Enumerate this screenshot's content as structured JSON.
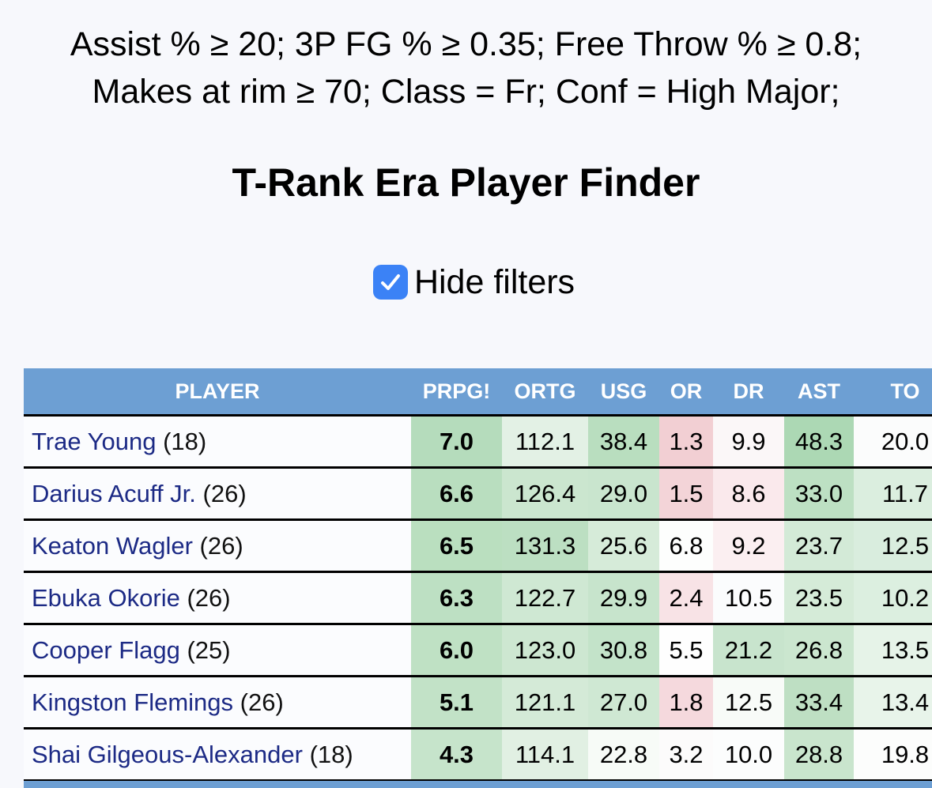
{
  "filters": {
    "line1": "Assist % ≥ 20; 3P FG % ≥ 0.35; Free Throw % ≥ 0.8;",
    "line2": "Makes at rim ≥ 70; Class = Fr; Conf = High Major;"
  },
  "page_title": "T-Rank Era Player Finder",
  "hide_filters": {
    "label": "Hide filters",
    "checked": true
  },
  "table": {
    "columns": [
      "PLAYER",
      "PRPG!",
      "ORTG",
      "USG",
      "OR",
      "DR",
      "AST",
      "TO"
    ],
    "rows": [
      {
        "name": "Trae Young",
        "pick": "(18)",
        "cells": [
          "7.0",
          "112.1",
          "38.4",
          "1.3",
          "9.9",
          "48.3",
          "20.0"
        ]
      },
      {
        "name": "Darius Acuff Jr.",
        "pick": "(26)",
        "cells": [
          "6.6",
          "126.4",
          "29.0",
          "1.5",
          "8.6",
          "33.0",
          "11.7"
        ]
      },
      {
        "name": "Keaton Wagler",
        "pick": "(26)",
        "cells": [
          "6.5",
          "131.3",
          "25.6",
          "6.8",
          "9.2",
          "23.7",
          "12.5"
        ]
      },
      {
        "name": "Ebuka Okorie",
        "pick": "(26)",
        "cells": [
          "6.3",
          "122.7",
          "29.9",
          "2.4",
          "10.5",
          "23.5",
          "10.2"
        ]
      },
      {
        "name": "Cooper Flagg",
        "pick": "(25)",
        "cells": [
          "6.0",
          "123.0",
          "30.8",
          "5.5",
          "21.2",
          "26.8",
          "13.5"
        ]
      },
      {
        "name": "Kingston Flemings",
        "pick": "(26)",
        "cells": [
          "5.1",
          "121.1",
          "27.0",
          "1.8",
          "12.5",
          "33.4",
          "13.4"
        ]
      },
      {
        "name": "Shai Gilgeous-Alexander",
        "pick": "(18)",
        "cells": [
          "4.3",
          "114.1",
          "22.8",
          "3.2",
          "10.0",
          "28.8",
          "19.8"
        ]
      }
    ],
    "cell_colors": [
      [
        "#b5dcbc",
        "#e3f1e5",
        "#b9debf",
        "#f2cfd3",
        "#fbf7f8",
        "#acd8b4",
        "#fbfcfc"
      ],
      [
        "#b9debf",
        "#cbe6cf",
        "#c9e5ce",
        "#f3d4d8",
        "#fae9ec",
        "#bde0c3",
        "#dbeedf"
      ],
      [
        "#badfbf",
        "#bcdfc2",
        "#d6ebd9",
        "#fdfefd",
        "#fbeff1",
        "#d3ead7",
        "#d9edde"
      ],
      [
        "#bde0c3",
        "#cfe8d3",
        "#c7e4cc",
        "#f8e3e6",
        "#fbfcfd",
        "#d5ebd8",
        "#dcefe0"
      ],
      [
        "#bfe1c4",
        "#cde7d1",
        "#c3e3c9",
        "#fefefe",
        "#c8e4cd",
        "#cbe6cf",
        "#e6f3e8"
      ],
      [
        "#c2e2c7",
        "#d4ead7",
        "#cfe8d3",
        "#f5d9dd",
        "#f8fbf8",
        "#bedfc3",
        "#e8f4ea"
      ],
      [
        "#c6e4cb",
        "#e1f0e3",
        "#f7fbf7",
        "#fcfbfb",
        "#fcfdfd",
        "#c9e5cd",
        "#fcfdfc"
      ]
    ]
  }
}
